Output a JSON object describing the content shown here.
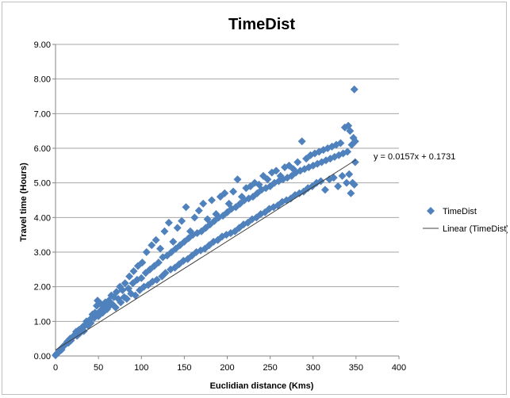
{
  "chart_data": {
    "type": "scatter",
    "title": "TimeDist",
    "xlabel": "Euclidian distance (Kms)",
    "ylabel": "Travel time (Hours)",
    "xlim": [
      0,
      400
    ],
    "ylim": [
      0,
      9
    ],
    "x_ticks": [
      "0",
      "50",
      "100",
      "150",
      "200",
      "250",
      "300",
      "350",
      "400"
    ],
    "y_ticks": [
      "0.00",
      "1.00",
      "2.00",
      "3.00",
      "4.00",
      "5.00",
      "6.00",
      "7.00",
      "8.00",
      "9.00"
    ],
    "grid": "horizontal",
    "legend_position": "right",
    "series": [
      {
        "name": "TimeDist",
        "marker": "diamond",
        "color": "#4f81bd",
        "points": [
          [
            0,
            0.02
          ],
          [
            1,
            0.05
          ],
          [
            2,
            0.08
          ],
          [
            3,
            0.1
          ],
          [
            4,
            0.12
          ],
          [
            5,
            0.15
          ],
          [
            6,
            0.2
          ],
          [
            7,
            0.18
          ],
          [
            8,
            0.25
          ],
          [
            10,
            0.3
          ],
          [
            12,
            0.35
          ],
          [
            14,
            0.42
          ],
          [
            15,
            0.38
          ],
          [
            17,
            0.5
          ],
          [
            18,
            0.45
          ],
          [
            20,
            0.55
          ],
          [
            22,
            0.6
          ],
          [
            24,
            0.7
          ],
          [
            25,
            0.58
          ],
          [
            27,
            0.75
          ],
          [
            28,
            0.65
          ],
          [
            30,
            0.8
          ],
          [
            32,
            0.85
          ],
          [
            33,
            0.72
          ],
          [
            35,
            0.9
          ],
          [
            36,
            1.0
          ],
          [
            38,
            0.88
          ],
          [
            40,
            1.05
          ],
          [
            41,
            0.95
          ],
          [
            43,
            1.2
          ],
          [
            45,
            1.1
          ],
          [
            46,
            1.25
          ],
          [
            48,
            1.45
          ],
          [
            49,
            1.6
          ],
          [
            50,
            1.15
          ],
          [
            52,
            1.3
          ],
          [
            53,
            1.5
          ],
          [
            55,
            1.25
          ],
          [
            56,
            1.4
          ],
          [
            58,
            1.55
          ],
          [
            60,
            1.35
          ],
          [
            62,
            1.6
          ],
          [
            63,
            1.45
          ],
          [
            65,
            1.75
          ],
          [
            66,
            1.5
          ],
          [
            68,
            1.7
          ],
          [
            70,
            1.4
          ],
          [
            71,
            1.85
          ],
          [
            73,
            1.65
          ],
          [
            75,
            2.0
          ],
          [
            76,
            1.55
          ],
          [
            78,
            1.9
          ],
          [
            80,
            1.7
          ],
          [
            81,
            2.1
          ],
          [
            83,
            1.65
          ],
          [
            85,
            1.95
          ],
          [
            86,
            2.3
          ],
          [
            88,
            1.8
          ],
          [
            90,
            2.1
          ],
          [
            91,
            2.45
          ],
          [
            93,
            1.75
          ],
          [
            95,
            2.2
          ],
          [
            96,
            2.6
          ],
          [
            98,
            1.9
          ],
          [
            100,
            2.25
          ],
          [
            101,
            2.7
          ],
          [
            103,
            2.0
          ],
          [
            105,
            2.4
          ],
          [
            106,
            3.0
          ],
          [
            108,
            2.05
          ],
          [
            110,
            2.5
          ],
          [
            112,
            3.2
          ],
          [
            113,
            2.15
          ],
          [
            115,
            2.6
          ],
          [
            117,
            3.35
          ],
          [
            118,
            2.2
          ],
          [
            120,
            2.7
          ],
          [
            122,
            3.1
          ],
          [
            124,
            2.3
          ],
          [
            125,
            2.85
          ],
          [
            127,
            3.6
          ],
          [
            128,
            2.4
          ],
          [
            130,
            2.9
          ],
          [
            132,
            3.85
          ],
          [
            134,
            2.5
          ],
          [
            135,
            3.0
          ],
          [
            137,
            3.3
          ],
          [
            139,
            2.55
          ],
          [
            140,
            3.1
          ],
          [
            142,
            3.7
          ],
          [
            144,
            2.65
          ],
          [
            145,
            3.2
          ],
          [
            147,
            3.9
          ],
          [
            149,
            2.75
          ],
          [
            150,
            3.3
          ],
          [
            152,
            4.3
          ],
          [
            154,
            2.8
          ],
          [
            155,
            3.4
          ],
          [
            157,
            3.6
          ],
          [
            159,
            2.9
          ],
          [
            160,
            3.5
          ],
          [
            162,
            4.0
          ],
          [
            164,
            3.0
          ],
          [
            165,
            3.55
          ],
          [
            167,
            4.2
          ],
          [
            169,
            3.05
          ],
          [
            170,
            3.6
          ],
          [
            172,
            4.4
          ],
          [
            174,
            3.1
          ],
          [
            175,
            3.7
          ],
          [
            177,
            3.95
          ],
          [
            179,
            3.2
          ],
          [
            180,
            3.8
          ],
          [
            182,
            4.5
          ],
          [
            184,
            3.3
          ],
          [
            185,
            3.9
          ],
          [
            187,
            4.1
          ],
          [
            189,
            3.35
          ],
          [
            190,
            4.0
          ],
          [
            192,
            4.6
          ],
          [
            194,
            3.45
          ],
          [
            195,
            4.05
          ],
          [
            197,
            4.7
          ],
          [
            199,
            3.5
          ],
          [
            200,
            4.15
          ],
          [
            202,
            4.4
          ],
          [
            204,
            3.55
          ],
          [
            205,
            4.25
          ],
          [
            207,
            4.75
          ],
          [
            209,
            3.6
          ],
          [
            210,
            4.3
          ],
          [
            212,
            5.1
          ],
          [
            214,
            3.7
          ],
          [
            215,
            4.4
          ],
          [
            217,
            4.6
          ],
          [
            219,
            3.8
          ],
          [
            220,
            4.5
          ],
          [
            222,
            4.85
          ],
          [
            224,
            3.85
          ],
          [
            225,
            4.55
          ],
          [
            227,
            4.9
          ],
          [
            229,
            3.95
          ],
          [
            230,
            4.6
          ],
          [
            232,
            5.0
          ],
          [
            234,
            4.0
          ],
          [
            235,
            4.7
          ],
          [
            237,
            4.95
          ],
          [
            239,
            4.1
          ],
          [
            240,
            4.8
          ],
          [
            242,
            5.2
          ],
          [
            244,
            4.15
          ],
          [
            245,
            4.85
          ],
          [
            247,
            5.1
          ],
          [
            249,
            4.25
          ],
          [
            250,
            4.9
          ],
          [
            252,
            5.3
          ],
          [
            254,
            4.3
          ],
          [
            255,
            5.0
          ],
          [
            257,
            5.35
          ],
          [
            259,
            4.35
          ],
          [
            260,
            5.05
          ],
          [
            262,
            5.2
          ],
          [
            264,
            4.45
          ],
          [
            265,
            5.1
          ],
          [
            267,
            5.45
          ],
          [
            269,
            4.5
          ],
          [
            270,
            5.15
          ],
          [
            272,
            5.5
          ],
          [
            274,
            4.55
          ],
          [
            275,
            5.2
          ],
          [
            277,
            5.4
          ],
          [
            279,
            4.65
          ],
          [
            280,
            5.3
          ],
          [
            282,
            5.6
          ],
          [
            284,
            4.7
          ],
          [
            285,
            5.35
          ],
          [
            287,
            6.2
          ],
          [
            289,
            4.75
          ],
          [
            290,
            5.4
          ],
          [
            292,
            5.7
          ],
          [
            294,
            4.85
          ],
          [
            295,
            5.45
          ],
          [
            297,
            5.8
          ],
          [
            299,
            4.9
          ],
          [
            300,
            5.5
          ],
          [
            302,
            5.85
          ],
          [
            304,
            5.0
          ],
          [
            305,
            5.55
          ],
          [
            307,
            5.9
          ],
          [
            309,
            5.05
          ],
          [
            310,
            5.6
          ],
          [
            312,
            5.95
          ],
          [
            314,
            4.8
          ],
          [
            315,
            5.65
          ],
          [
            317,
            6.0
          ],
          [
            319,
            5.1
          ],
          [
            320,
            5.7
          ],
          [
            322,
            6.05
          ],
          [
            324,
            5.15
          ],
          [
            325,
            5.75
          ],
          [
            327,
            6.1
          ],
          [
            329,
            4.9
          ],
          [
            330,
            5.8
          ],
          [
            332,
            6.15
          ],
          [
            334,
            5.2
          ],
          [
            335,
            5.85
          ],
          [
            337,
            6.6
          ],
          [
            339,
            5.0
          ],
          [
            340,
            5.9
          ],
          [
            341,
            6.65
          ],
          [
            342,
            5.25
          ],
          [
            343,
            6.5
          ],
          [
            344,
            4.7
          ],
          [
            345,
            6.1
          ],
          [
            346,
            5.0
          ],
          [
            347,
            6.3
          ],
          [
            348,
            7.7
          ],
          [
            348,
            4.95
          ],
          [
            349,
            5.6
          ],
          [
            349,
            6.2
          ]
        ]
      },
      {
        "name": "Linear (TimeDist)",
        "type": "line",
        "color": "#404040",
        "slope": 0.0157,
        "intercept": 0.1731,
        "x_range": [
          0,
          350
        ]
      }
    ],
    "annotations": [
      {
        "text": "y = 0.0157x + 0.1731"
      }
    ]
  }
}
